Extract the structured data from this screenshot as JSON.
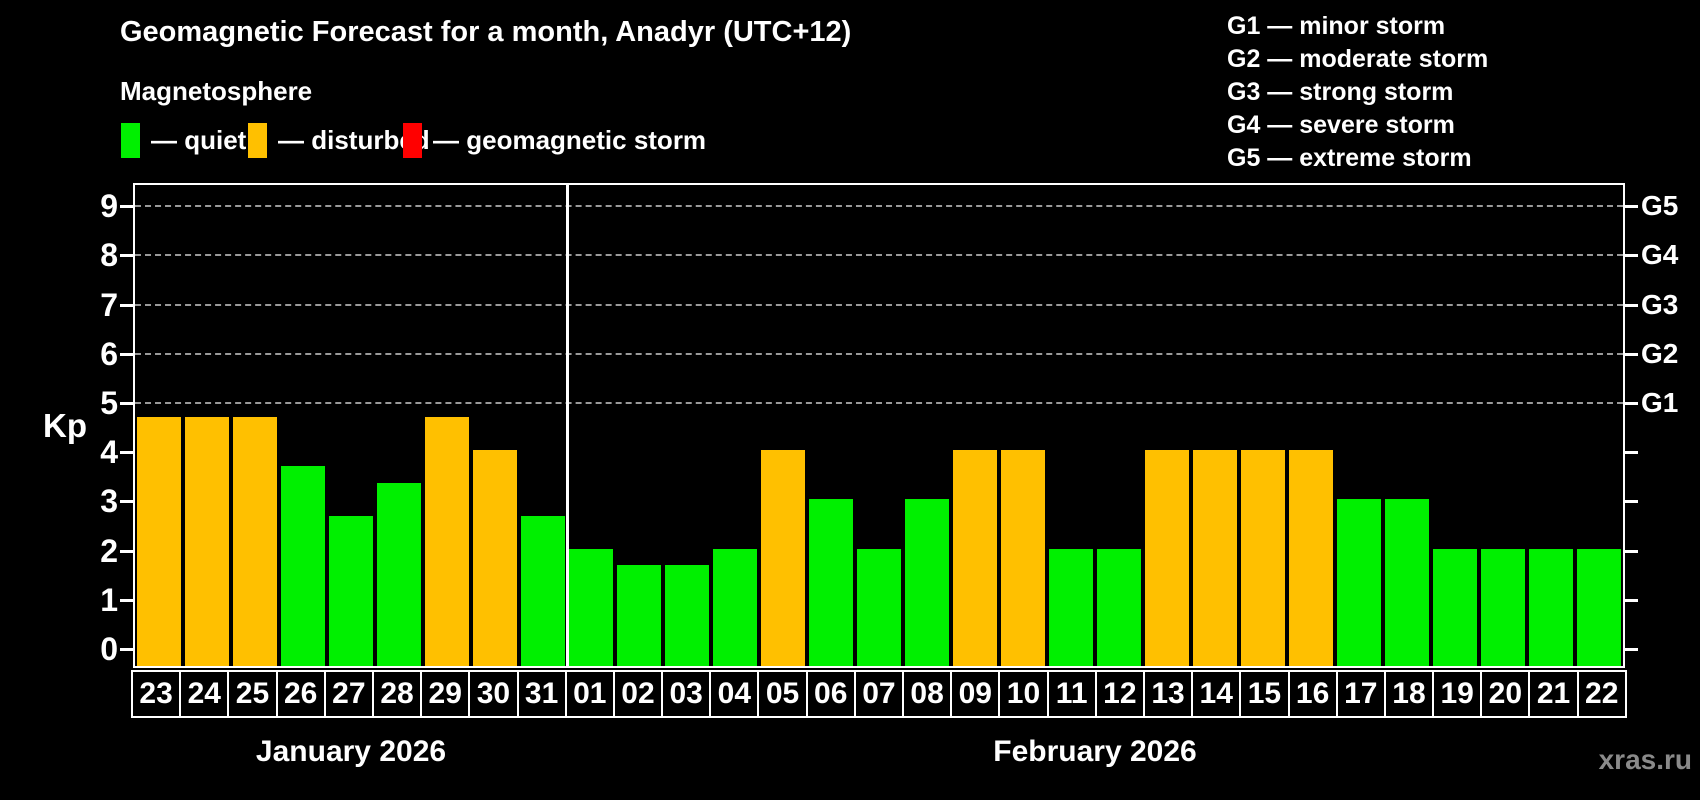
{
  "title": "Geomagnetic Forecast for a month, Anadyr (UTC+12)",
  "subtitle": "Magnetosphere",
  "legend": {
    "items": [
      {
        "label": "— quiet",
        "status": "quiet",
        "color": "#00F000"
      },
      {
        "label": "— disturbed",
        "status": "disturbed",
        "color": "#FFC000"
      },
      {
        "label": "— geomagnetic storm",
        "status": "storm",
        "color": "#FF0000"
      }
    ]
  },
  "storm_legend": [
    "G1 — minor storm",
    "G2 — moderate storm",
    "G3 — strong storm",
    "G4 — severe storm",
    "G5 — extreme storm"
  ],
  "watermark": "xras.ru",
  "chart_data": {
    "type": "bar",
    "ylabel": "Kp",
    "ylim": [
      0,
      9
    ],
    "y_ticks": [
      0,
      1,
      2,
      3,
      4,
      5,
      6,
      7,
      8,
      9
    ],
    "grid": "dashed-at-storm-levels",
    "legend_position": "top",
    "status_colors": {
      "quiet": "#00F000",
      "disturbed": "#FFC000",
      "storm": "#FF0000"
    },
    "right_axis_labels": [
      {
        "label": "G1",
        "kp": 5
      },
      {
        "label": "G2",
        "kp": 6
      },
      {
        "label": "G3",
        "kp": 7
      },
      {
        "label": "G4",
        "kp": 8
      },
      {
        "label": "G5",
        "kp": 9
      }
    ],
    "months": [
      {
        "label": "January 2026",
        "days": [
          {
            "date": "23",
            "kp": 4.67,
            "status": "disturbed"
          },
          {
            "date": "24",
            "kp": 4.67,
            "status": "disturbed"
          },
          {
            "date": "25",
            "kp": 4.67,
            "status": "disturbed"
          },
          {
            "date": "26",
            "kp": 3.67,
            "status": "quiet"
          },
          {
            "date": "27",
            "kp": 2.67,
            "status": "quiet"
          },
          {
            "date": "28",
            "kp": 3.33,
            "status": "quiet"
          },
          {
            "date": "29",
            "kp": 4.67,
            "status": "disturbed"
          },
          {
            "date": "30",
            "kp": 4.0,
            "status": "disturbed"
          },
          {
            "date": "31",
            "kp": 2.67,
            "status": "quiet"
          }
        ]
      },
      {
        "label": "February 2026",
        "days": [
          {
            "date": "01",
            "kp": 2.0,
            "status": "quiet"
          },
          {
            "date": "02",
            "kp": 1.67,
            "status": "quiet"
          },
          {
            "date": "03",
            "kp": 1.67,
            "status": "quiet"
          },
          {
            "date": "04",
            "kp": 2.0,
            "status": "quiet"
          },
          {
            "date": "05",
            "kp": 4.0,
            "status": "disturbed"
          },
          {
            "date": "06",
            "kp": 3.0,
            "status": "quiet"
          },
          {
            "date": "07",
            "kp": 2.0,
            "status": "quiet"
          },
          {
            "date": "08",
            "kp": 3.0,
            "status": "quiet"
          },
          {
            "date": "09",
            "kp": 4.0,
            "status": "disturbed"
          },
          {
            "date": "10",
            "kp": 4.0,
            "status": "disturbed"
          },
          {
            "date": "11",
            "kp": 2.0,
            "status": "quiet"
          },
          {
            "date": "12",
            "kp": 2.0,
            "status": "quiet"
          },
          {
            "date": "13",
            "kp": 4.0,
            "status": "disturbed"
          },
          {
            "date": "14",
            "kp": 4.0,
            "status": "disturbed"
          },
          {
            "date": "15",
            "kp": 4.0,
            "status": "disturbed"
          },
          {
            "date": "16",
            "kp": 4.0,
            "status": "disturbed"
          },
          {
            "date": "17",
            "kp": 3.0,
            "status": "quiet"
          },
          {
            "date": "18",
            "kp": 3.0,
            "status": "quiet"
          },
          {
            "date": "19",
            "kp": 2.0,
            "status": "quiet"
          },
          {
            "date": "20",
            "kp": 2.0,
            "status": "quiet"
          },
          {
            "date": "21",
            "kp": 2.0,
            "status": "quiet"
          },
          {
            "date": "22",
            "kp": 2.0,
            "status": "quiet"
          }
        ]
      }
    ]
  }
}
